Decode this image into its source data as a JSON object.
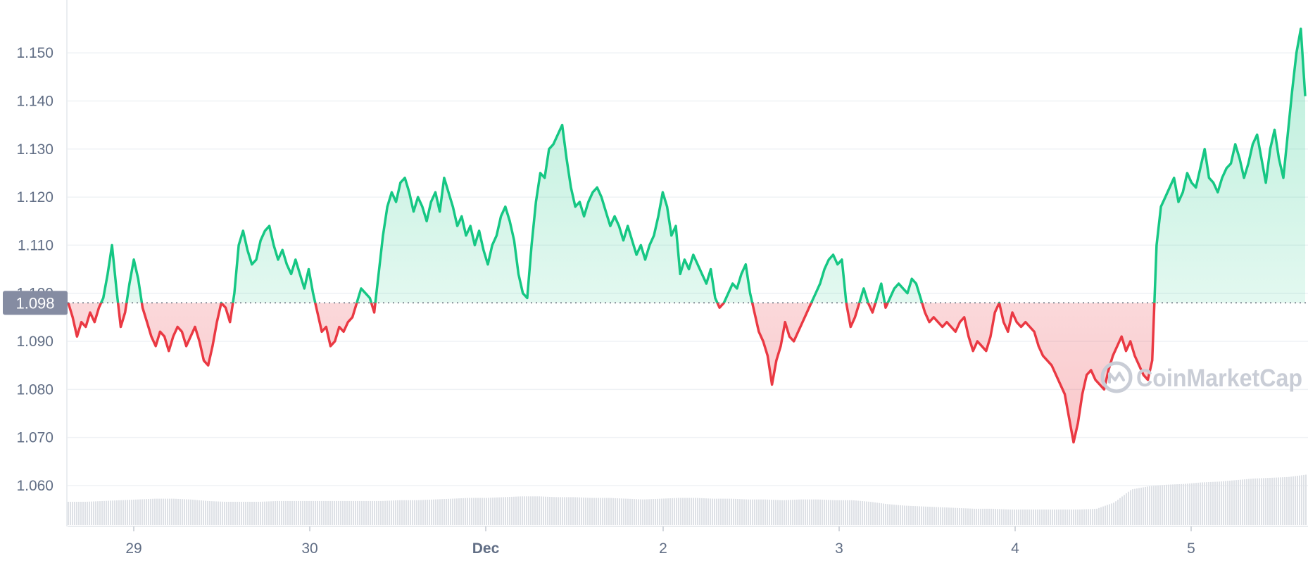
{
  "chart_data": {
    "type": "line",
    "title": "",
    "xlabel": "",
    "ylabel": "",
    "baseline_value": 1.098,
    "baseline_label": "1.098",
    "ylim": [
      1.0515,
      1.161
    ],
    "xlim": [
      28.62,
      5.64
    ],
    "y_ticks": [
      {
        "value": 1.15,
        "label": "1.150"
      },
      {
        "value": 1.14,
        "label": "1.140"
      },
      {
        "value": 1.13,
        "label": "1.130"
      },
      {
        "value": 1.12,
        "label": "1.120"
      },
      {
        "value": 1.11,
        "label": "1.110"
      },
      {
        "value": 1.1,
        "label": "1.100"
      },
      {
        "value": 1.09,
        "label": "1.090"
      },
      {
        "value": 1.08,
        "label": "1.080"
      },
      {
        "value": 1.07,
        "label": "1.070"
      },
      {
        "value": 1.06,
        "label": "1.060"
      }
    ],
    "x_ticks": [
      {
        "label": "29",
        "bold": false
      },
      {
        "label": "30",
        "bold": false
      },
      {
        "label": "Dec",
        "bold": true
      },
      {
        "label": "2",
        "bold": false
      },
      {
        "label": "3",
        "bold": false
      },
      {
        "label": "4",
        "bold": false
      },
      {
        "label": "5",
        "bold": false
      }
    ],
    "series": [
      {
        "x_start": "Nov 28",
        "x_end": "Dec 5",
        "values": [
          1.098,
          1.095,
          1.091,
          1.094,
          1.093,
          1.096,
          1.094,
          1.097,
          1.099,
          1.104,
          1.11,
          1.101,
          1.093,
          1.096,
          1.102,
          1.107,
          1.103,
          1.097,
          1.094,
          1.091,
          1.089,
          1.092,
          1.091,
          1.088,
          1.091,
          1.093,
          1.092,
          1.089,
          1.091,
          1.093,
          1.09,
          1.086,
          1.085,
          1.089,
          1.094,
          1.098,
          1.097,
          1.094,
          1.1,
          1.11,
          1.113,
          1.109,
          1.106,
          1.107,
          1.111,
          1.113,
          1.114,
          1.11,
          1.107,
          1.109,
          1.106,
          1.104,
          1.107,
          1.104,
          1.101,
          1.105,
          1.1,
          1.096,
          1.092,
          1.093,
          1.089,
          1.09,
          1.093,
          1.092,
          1.094,
          1.095,
          1.098,
          1.101,
          1.1,
          1.099,
          1.096,
          1.104,
          1.112,
          1.118,
          1.121,
          1.119,
          1.123,
          1.124,
          1.121,
          1.117,
          1.12,
          1.118,
          1.115,
          1.119,
          1.121,
          1.117,
          1.124,
          1.121,
          1.118,
          1.114,
          1.116,
          1.112,
          1.114,
          1.11,
          1.113,
          1.109,
          1.106,
          1.11,
          1.112,
          1.116,
          1.118,
          1.115,
          1.111,
          1.104,
          1.1,
          1.099,
          1.11,
          1.119,
          1.125,
          1.124,
          1.13,
          1.131,
          1.133,
          1.135,
          1.128,
          1.122,
          1.118,
          1.119,
          1.116,
          1.119,
          1.121,
          1.122,
          1.12,
          1.117,
          1.114,
          1.116,
          1.114,
          1.111,
          1.114,
          1.111,
          1.108,
          1.11,
          1.107,
          1.11,
          1.112,
          1.116,
          1.121,
          1.118,
          1.112,
          1.114,
          1.104,
          1.107,
          1.105,
          1.108,
          1.106,
          1.104,
          1.102,
          1.105,
          1.099,
          1.097,
          1.098,
          1.1,
          1.102,
          1.101,
          1.104,
          1.106,
          1.1,
          1.096,
          1.092,
          1.09,
          1.087,
          1.081,
          1.086,
          1.089,
          1.094,
          1.091,
          1.09,
          1.092,
          1.094,
          1.096,
          1.098,
          1.1,
          1.102,
          1.105,
          1.107,
          1.108,
          1.106,
          1.107,
          1.098,
          1.093,
          1.095,
          1.098,
          1.101,
          1.098,
          1.096,
          1.099,
          1.102,
          1.097,
          1.099,
          1.101,
          1.102,
          1.101,
          1.1,
          1.103,
          1.102,
          1.099,
          1.096,
          1.094,
          1.095,
          1.094,
          1.093,
          1.094,
          1.093,
          1.092,
          1.094,
          1.095,
          1.091,
          1.088,
          1.09,
          1.089,
          1.088,
          1.091,
          1.096,
          1.098,
          1.094,
          1.092,
          1.096,
          1.094,
          1.093,
          1.094,
          1.093,
          1.092,
          1.089,
          1.087,
          1.086,
          1.085,
          1.083,
          1.081,
          1.079,
          1.074,
          1.069,
          1.073,
          1.079,
          1.083,
          1.084,
          1.082,
          1.081,
          1.08,
          1.084,
          1.087,
          1.089,
          1.091,
          1.088,
          1.09,
          1.087,
          1.085,
          1.083,
          1.082,
          1.086,
          1.11,
          1.118,
          1.12,
          1.122,
          1.124,
          1.119,
          1.121,
          1.125,
          1.123,
          1.122,
          1.126,
          1.13,
          1.124,
          1.123,
          1.121,
          1.124,
          1.126,
          1.127,
          1.131,
          1.128,
          1.124,
          1.127,
          1.131,
          1.133,
          1.128,
          1.123,
          1.13,
          1.134,
          1.128,
          1.124,
          1.133,
          1.142,
          1.15,
          1.155,
          1.141
        ]
      }
    ],
    "volume": {
      "values": [
        0.3,
        0.3,
        0.31,
        0.32,
        0.33,
        0.34,
        0.34,
        0.33,
        0.31,
        0.3,
        0.3,
        0.3,
        0.31,
        0.31,
        0.31,
        0.31,
        0.31,
        0.31,
        0.31,
        0.32,
        0.32,
        0.33,
        0.34,
        0.35,
        0.35,
        0.36,
        0.37,
        0.37,
        0.36,
        0.36,
        0.35,
        0.35,
        0.34,
        0.33,
        0.34,
        0.35,
        0.35,
        0.34,
        0.34,
        0.33,
        0.33,
        0.32,
        0.33,
        0.33,
        0.32,
        0.32,
        0.3,
        0.27,
        0.25,
        0.24,
        0.23,
        0.22,
        0.21,
        0.21,
        0.2,
        0.2,
        0.2,
        0.2,
        0.2,
        0.21,
        0.29,
        0.46,
        0.5,
        0.52,
        0.53,
        0.55,
        0.56,
        0.58,
        0.6,
        0.61,
        0.62,
        0.65
      ]
    },
    "grid": true,
    "legend": "none",
    "colors": {
      "up": "#16c784",
      "down": "#ea3943",
      "grid": "#eff2f5",
      "axis_text": "#616e85",
      "volume": "#dee1e6",
      "label_bg": "#858ca2",
      "watermark": "#c9cdd6"
    }
  },
  "watermark": {
    "text": "CoinMarketCap",
    "icon": "coinmarketcap-logo-icon"
  }
}
